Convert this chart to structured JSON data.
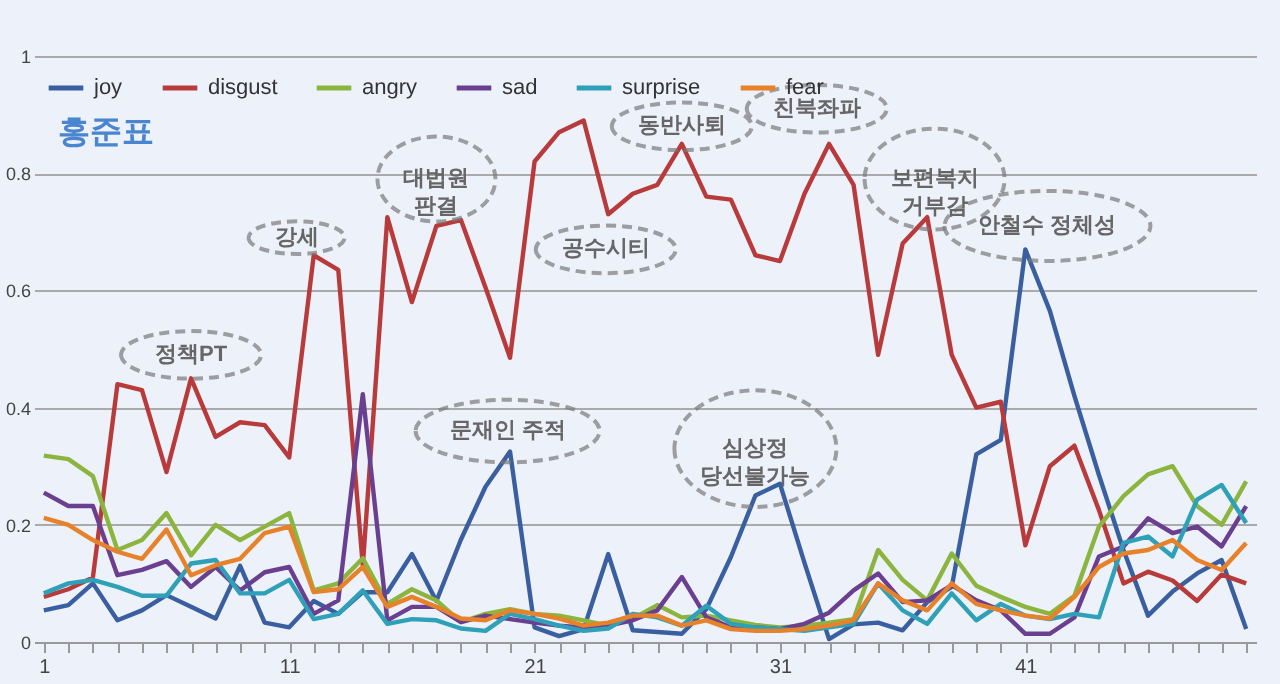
{
  "chart_data": {
    "type": "line",
    "title": "홍준표",
    "x": [
      1,
      2,
      3,
      4,
      5,
      6,
      7,
      8,
      9,
      10,
      11,
      12,
      13,
      14,
      15,
      16,
      17,
      18,
      19,
      20,
      21,
      22,
      23,
      24,
      25,
      26,
      27,
      28,
      29,
      30,
      31,
      32,
      33,
      34,
      35,
      36,
      37,
      38,
      39,
      40,
      41,
      42,
      43,
      44,
      45,
      46,
      47,
      48,
      49,
      50
    ],
    "series": [
      {
        "name": "joy",
        "color": "#3a5fa0",
        "values": [
          0.054,
          0.063,
          0.1,
          0.037,
          0.054,
          0.08,
          0.06,
          0.04,
          0.13,
          0.033,
          0.025,
          0.07,
          0.048,
          0.085,
          0.085,
          0.15,
          0.07,
          0.175,
          0.265,
          0.325,
          0.025,
          0.01,
          0.022,
          0.15,
          0.02,
          0.017,
          0.014,
          0.056,
          0.145,
          0.25,
          0.27,
          0.135,
          0.005,
          0.03,
          0.033,
          0.02,
          0.068,
          0.094,
          0.32,
          0.345,
          0.67,
          0.565,
          0.42,
          0.285,
          0.157,
          0.045,
          0.086,
          0.117,
          0.14,
          0.022
        ]
      },
      {
        "name": "disgust",
        "color": "#b83a3a",
        "values": [
          0.077,
          0.09,
          0.11,
          0.44,
          0.43,
          0.29,
          0.45,
          0.35,
          0.375,
          0.37,
          0.315,
          0.66,
          0.635,
          0.13,
          0.725,
          0.58,
          0.71,
          0.72,
          0.605,
          0.485,
          0.82,
          0.87,
          0.89,
          0.73,
          0.765,
          0.78,
          0.85,
          0.76,
          0.755,
          0.66,
          0.65,
          0.765,
          0.85,
          0.78,
          0.49,
          0.68,
          0.725,
          0.49,
          0.4,
          0.41,
          0.165,
          0.3,
          0.335,
          0.225,
          0.1,
          0.12,
          0.105,
          0.07,
          0.115,
          0.1
        ]
      },
      {
        "name": "angry",
        "color": "#8cb53f",
        "values": [
          0.318,
          0.312,
          0.283,
          0.157,
          0.174,
          0.22,
          0.148,
          0.2,
          0.174,
          0.197,
          0.22,
          0.088,
          0.1,
          0.143,
          0.065,
          0.09,
          0.071,
          0.034,
          0.048,
          0.056,
          0.048,
          0.045,
          0.037,
          0.028,
          0.04,
          0.063,
          0.042,
          0.045,
          0.037,
          0.029,
          0.025,
          0.028,
          0.033,
          0.039,
          0.157,
          0.106,
          0.071,
          0.151,
          0.096,
          0.077,
          0.06,
          0.048,
          0.079,
          0.197,
          0.249,
          0.286,
          0.3,
          0.232,
          0.2,
          0.274
        ]
      },
      {
        "name": "sad",
        "color": "#6b3f8f",
        "values": [
          0.255,
          0.232,
          0.232,
          0.114,
          0.123,
          0.138,
          0.094,
          0.128,
          0.088,
          0.119,
          0.128,
          0.048,
          0.071,
          0.423,
          0.037,
          0.06,
          0.06,
          0.034,
          0.045,
          0.039,
          0.033,
          0.028,
          0.025,
          0.028,
          0.037,
          0.054,
          0.111,
          0.042,
          0.025,
          0.025,
          0.022,
          0.031,
          0.05,
          0.088,
          0.117,
          0.068,
          0.071,
          0.097,
          0.071,
          0.054,
          0.014,
          0.014,
          0.042,
          0.146,
          0.163,
          0.211,
          0.186,
          0.197,
          0.163,
          0.232
        ]
      },
      {
        "name": "surprise",
        "color": "#2ea0b8",
        "values": [
          0.083,
          0.1,
          0.106,
          0.094,
          0.079,
          0.079,
          0.134,
          0.14,
          0.083,
          0.083,
          0.106,
          0.039,
          0.048,
          0.088,
          0.031,
          0.039,
          0.037,
          0.023,
          0.019,
          0.048,
          0.039,
          0.028,
          0.019,
          0.023,
          0.048,
          0.042,
          0.028,
          0.062,
          0.031,
          0.025,
          0.022,
          0.019,
          0.025,
          0.031,
          0.1,
          0.054,
          0.031,
          0.083,
          0.037,
          0.065,
          0.045,
          0.039,
          0.048,
          0.042,
          0.169,
          0.18,
          0.146,
          0.243,
          0.268,
          0.203
        ]
      },
      {
        "name": "fear",
        "color": "#e8822a",
        "values": [
          0.212,
          0.2,
          0.174,
          0.154,
          0.142,
          0.192,
          0.114,
          0.131,
          0.142,
          0.186,
          0.197,
          0.085,
          0.09,
          0.128,
          0.06,
          0.077,
          0.06,
          0.04,
          0.037,
          0.054,
          0.048,
          0.04,
          0.028,
          0.033,
          0.045,
          0.045,
          0.028,
          0.037,
          0.022,
          0.019,
          0.019,
          0.022,
          0.028,
          0.037,
          0.1,
          0.071,
          0.054,
          0.1,
          0.065,
          0.054,
          0.045,
          0.04,
          0.077,
          0.128,
          0.151,
          0.157,
          0.174,
          0.14,
          0.123,
          0.169
        ]
      }
    ],
    "annotations": [
      "정책PT",
      "강세",
      "대법원\n판결",
      "공수시티",
      "동반사퇴",
      "친북좌파",
      "보편복지\n거부감",
      "안철수 정체성",
      "문재인 주적",
      "심상정\n당선불가능"
    ],
    "xlim": [
      0.6,
      50.4
    ],
    "xticks": [
      1,
      {
        "value": 2,
        "label": null
      },
      {
        "value": 3,
        "label": null
      },
      {
        "value": 4,
        "label": null
      },
      {
        "value": 5,
        "label": null
      },
      {
        "value": 6,
        "label": null
      },
      {
        "value": 7,
        "label": null
      },
      {
        "value": 8,
        "label": null
      },
      {
        "value": 9,
        "label": null
      },
      {
        "value": 10,
        "label": null
      },
      11,
      {
        "value": 12,
        "label": null
      },
      {
        "value": 13,
        "label": null
      },
      {
        "value": 14,
        "label": null
      },
      {
        "value": 15,
        "label": null
      },
      {
        "value": 16,
        "label": null
      },
      {
        "value": 17,
        "label": null
      },
      {
        "value": 18,
        "label": null
      },
      {
        "value": 19,
        "label": null
      },
      {
        "value": 20,
        "label": null
      },
      21,
      {
        "value": 22,
        "label": null
      },
      {
        "value": 23,
        "label": null
      },
      {
        "value": 24,
        "label": null
      },
      {
        "value": 25,
        "label": null
      },
      {
        "value": 26,
        "label": null
      },
      {
        "value": 27,
        "label": null
      },
      {
        "value": 28,
        "label": null
      },
      {
        "value": 29,
        "label": null
      },
      {
        "value": 30,
        "label": null
      },
      31,
      {
        "value": 32,
        "label": null
      },
      {
        "value": 33,
        "label": null
      },
      {
        "value": 34,
        "label": null
      },
      {
        "value": 35,
        "label": null
      },
      {
        "value": 36,
        "label": null
      },
      {
        "value": 37,
        "label": null
      },
      {
        "value": 38,
        "label": null
      },
      {
        "value": 39,
        "label": null
      },
      {
        "value": 40,
        "label": null
      },
      41,
      {
        "value": 42,
        "label": null
      },
      {
        "value": 43,
        "label": null
      },
      {
        "value": 44,
        "label": null
      },
      {
        "value": 45,
        "label": null
      },
      {
        "value": 46,
        "label": null
      },
      {
        "value": 47,
        "label": null
      },
      {
        "value": 48,
        "label": null
      },
      {
        "value": 49,
        "label": null
      },
      {
        "value": 50,
        "label": null
      }
    ],
    "ylim": [
      0,
      1
    ],
    "yticks": [
      0,
      0.2,
      0.4,
      0.6,
      0.8,
      1
    ],
    "grid": "y",
    "legend": "top left",
    "marker": "none",
    "line_style": "solid"
  }
}
